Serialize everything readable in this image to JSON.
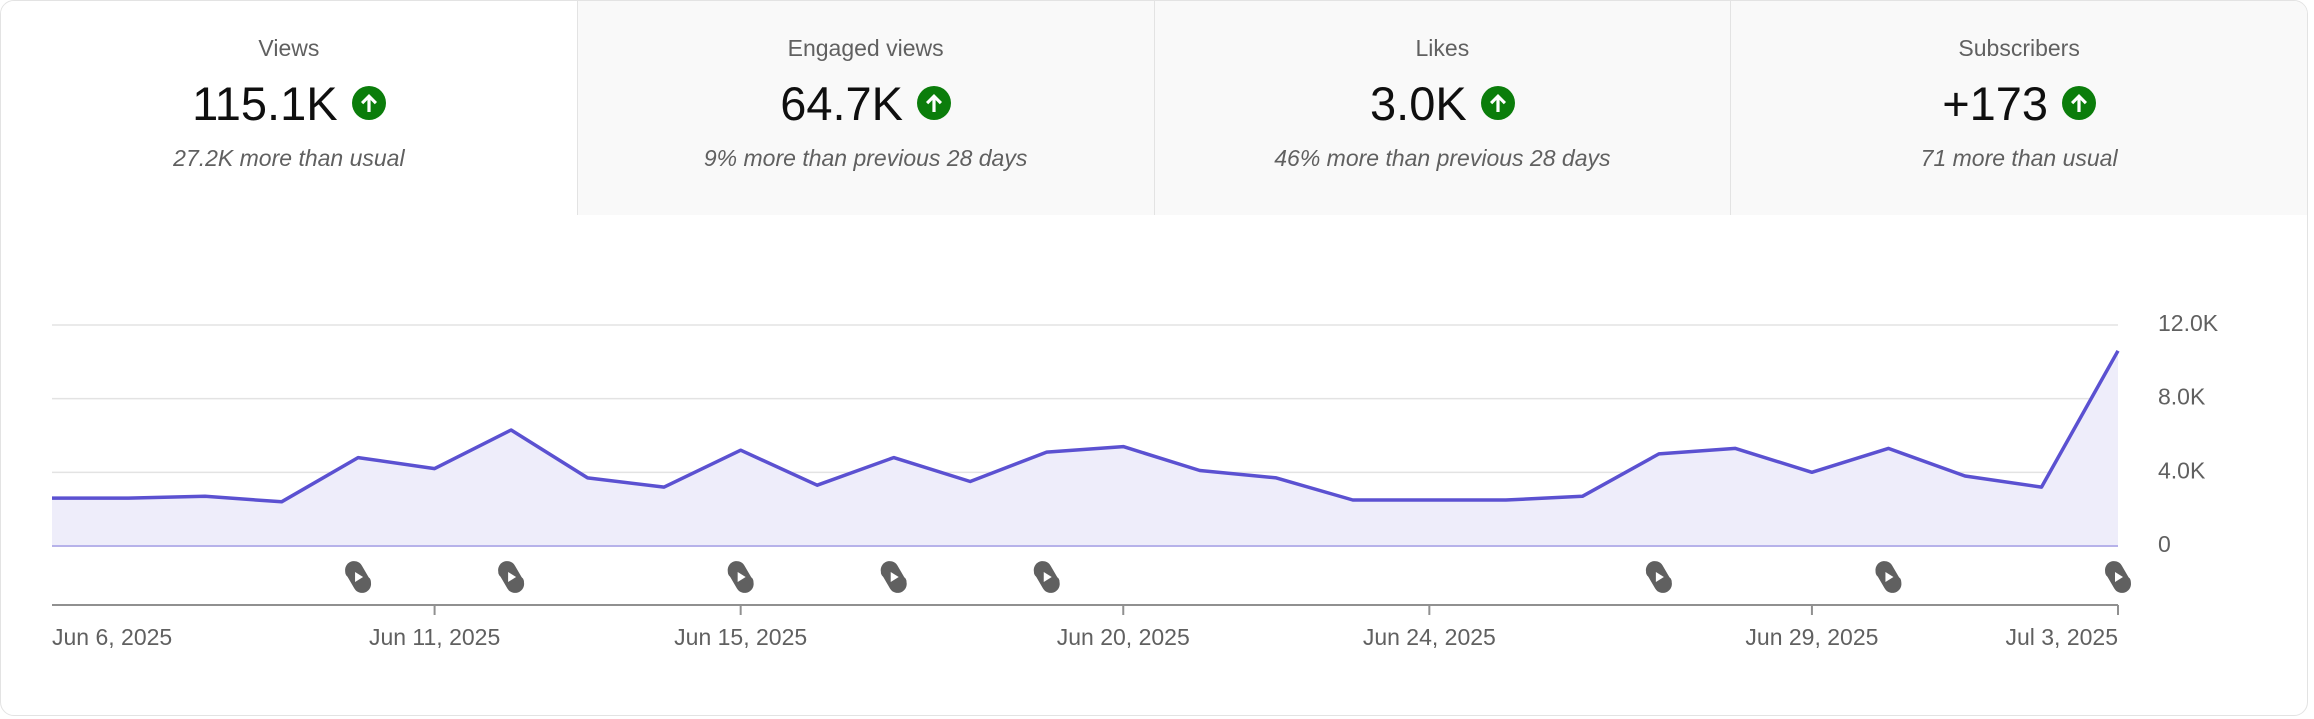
{
  "tabs": [
    {
      "label": "Views",
      "value": "115.1K",
      "note": "27.2K more than usual"
    },
    {
      "label": "Engaged views",
      "value": "64.7K",
      "note": "9% more than previous 28 days"
    },
    {
      "label": "Likes",
      "value": "3.0K",
      "note": "46% more than previous 28 days"
    },
    {
      "label": "Subscribers",
      "value": "+173",
      "note": "71 more than usual"
    }
  ],
  "chart_data": {
    "type": "area",
    "categories": [
      "Jun 6, 2025",
      null,
      null,
      null,
      null,
      "Jun 11, 2025",
      null,
      null,
      null,
      "Jun 15, 2025",
      null,
      null,
      null,
      null,
      "Jun 20, 2025",
      null,
      null,
      null,
      "Jun 24, 2025",
      null,
      null,
      null,
      null,
      "Jun 29, 2025",
      null,
      null,
      null,
      "Jul 3, 2025"
    ],
    "values": [
      2600,
      2600,
      2700,
      2400,
      4800,
      4200,
      6300,
      3700,
      3200,
      5200,
      3300,
      4800,
      3500,
      5100,
      5400,
      4100,
      3700,
      2500,
      2500,
      2500,
      2700,
      5000,
      5300,
      4000,
      5300,
      3800,
      3200,
      10600
    ],
    "color": "#5b51d1",
    "ylim": [
      0,
      12000
    ],
    "yticks": [
      0,
      {
        "value": 4000,
        "label": "4.0K"
      },
      {
        "value": 8000,
        "label": "8.0K"
      },
      {
        "value": 12000,
        "label": "12.0K"
      }
    ],
    "grid": true,
    "shorts_markers": [
      4,
      6,
      9,
      11,
      13,
      21,
      24,
      27
    ]
  }
}
